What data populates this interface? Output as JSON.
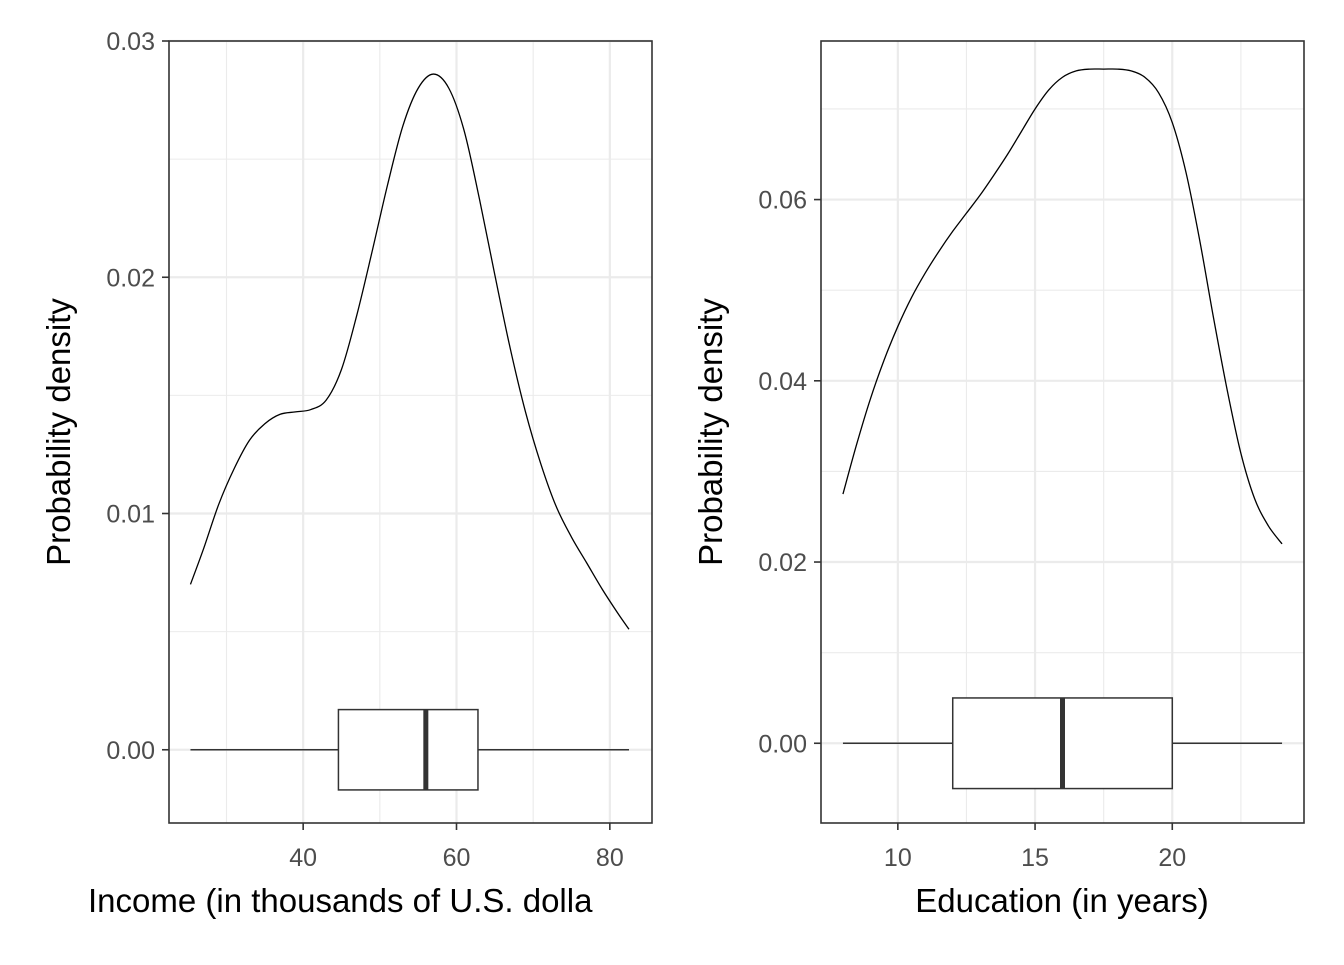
{
  "chart_data": [
    {
      "type": "density",
      "xlabel": "Income (in thousands of U.S. dolla",
      "ylabel": "Probability density",
      "xlim": [
        22.5,
        85.5
      ],
      "ylim": [
        -0.0031,
        0.03
      ],
      "x_ticks": [
        40,
        60,
        80
      ],
      "x_tick_labels": [
        "40",
        "60",
        "80"
      ],
      "x_minor_ticks": [
        30,
        50,
        70
      ],
      "y_ticks": [
        0.0,
        0.01,
        0.02,
        0.03
      ],
      "y_tick_labels": [
        "0.00",
        "0.01",
        "0.02",
        "0.03"
      ],
      "y_minor_ticks": [
        0.005,
        0.015,
        0.025
      ],
      "grid": true,
      "density": [
        [
          25.3,
          0.007
        ],
        [
          27,
          0.0085
        ],
        [
          29,
          0.0104
        ],
        [
          31,
          0.0119
        ],
        [
          33,
          0.0131
        ],
        [
          35,
          0.0138
        ],
        [
          37,
          0.0142
        ],
        [
          39,
          0.0143
        ],
        [
          41,
          0.0144
        ],
        [
          43,
          0.0148
        ],
        [
          45,
          0.0161
        ],
        [
          47,
          0.0184
        ],
        [
          49,
          0.0211
        ],
        [
          51,
          0.0239
        ],
        [
          53,
          0.0264
        ],
        [
          55,
          0.028
        ],
        [
          57,
          0.0286
        ],
        [
          59,
          0.028
        ],
        [
          61,
          0.0262
        ],
        [
          63,
          0.0233
        ],
        [
          65,
          0.0201
        ],
        [
          67,
          0.017
        ],
        [
          69,
          0.0143
        ],
        [
          71,
          0.0121
        ],
        [
          73,
          0.0103
        ],
        [
          75,
          0.009
        ],
        [
          77,
          0.0079
        ],
        [
          79,
          0.0068
        ],
        [
          81,
          0.0058
        ],
        [
          82.5,
          0.0051
        ]
      ],
      "boxplot": {
        "min": 25.3,
        "q1": 44.6,
        "median": 56.0,
        "q3": 62.8,
        "max": 82.5,
        "y_center": 0.0,
        "half_height": 0.0017
      }
    },
    {
      "type": "density",
      "xlabel": "Education (in years)",
      "ylabel": "Probability density",
      "xlim": [
        7.2,
        24.8
      ],
      "ylim": [
        -0.0088,
        0.0775
      ],
      "x_ticks": [
        10,
        15,
        20
      ],
      "x_tick_labels": [
        "10",
        "15",
        "20"
      ],
      "x_minor_ticks": [
        12.5,
        17.5,
        22.5
      ],
      "y_ticks": [
        0.0,
        0.02,
        0.04,
        0.06
      ],
      "y_tick_labels": [
        "0.00",
        "0.02",
        "0.04",
        "0.06"
      ],
      "y_minor_ticks": [
        0.01,
        0.03,
        0.05,
        0.07
      ],
      "grid": true,
      "density": [
        [
          8,
          0.0275
        ],
        [
          8.5,
          0.033
        ],
        [
          9,
          0.038
        ],
        [
          9.5,
          0.0423
        ],
        [
          10,
          0.046
        ],
        [
          10.5,
          0.0492
        ],
        [
          11,
          0.0519
        ],
        [
          11.5,
          0.0543
        ],
        [
          12,
          0.0565
        ],
        [
          12.5,
          0.0585
        ],
        [
          13,
          0.0605
        ],
        [
          13.5,
          0.0627
        ],
        [
          14,
          0.065
        ],
        [
          14.5,
          0.0675
        ],
        [
          15,
          0.07
        ],
        [
          15.5,
          0.0721
        ],
        [
          16,
          0.0735
        ],
        [
          16.5,
          0.0742
        ],
        [
          17,
          0.0744
        ],
        [
          17.5,
          0.0744
        ],
        [
          18,
          0.0744
        ],
        [
          18.5,
          0.0742
        ],
        [
          19,
          0.0735
        ],
        [
          19.5,
          0.0718
        ],
        [
          20,
          0.0685
        ],
        [
          20.5,
          0.063
        ],
        [
          21,
          0.0555
        ],
        [
          21.5,
          0.047
        ],
        [
          22,
          0.039
        ],
        [
          22.5,
          0.032
        ],
        [
          23,
          0.027
        ],
        [
          23.5,
          0.024
        ],
        [
          24,
          0.022
        ]
      ],
      "boxplot": {
        "min": 8,
        "q1": 12,
        "median": 16,
        "q3": 20,
        "max": 24,
        "y_center": 0.0,
        "half_height": 0.005
      }
    }
  ]
}
